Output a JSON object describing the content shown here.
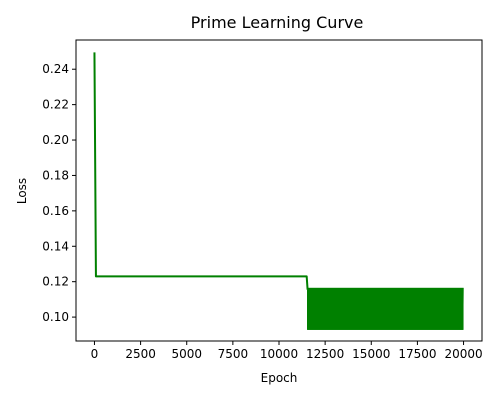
{
  "chart_data": {
    "type": "line",
    "title": "Prime Learning Curve",
    "xlabel": "Epoch",
    "ylabel": "Loss",
    "xlim": [
      -1000,
      21000
    ],
    "ylim": [
      0.0865,
      0.2565
    ],
    "xticks": [
      0,
      2500,
      5000,
      7500,
      10000,
      12500,
      15000,
      17500,
      20000
    ],
    "yticks": [
      0.1,
      0.12,
      0.14,
      0.16,
      0.18,
      0.2,
      0.22,
      0.24
    ],
    "grid": false,
    "legend": "none",
    "series": [
      {
        "color": "#008000",
        "x": [
          0,
          80,
          11500,
          11550
        ],
        "y": [
          0.2495,
          0.123,
          0.123,
          0.1155
        ],
        "oscillation": {
          "x_start": 11550,
          "x_end": 20000,
          "y_low": 0.0928,
          "y_high": 0.1165
        }
      }
    ]
  }
}
